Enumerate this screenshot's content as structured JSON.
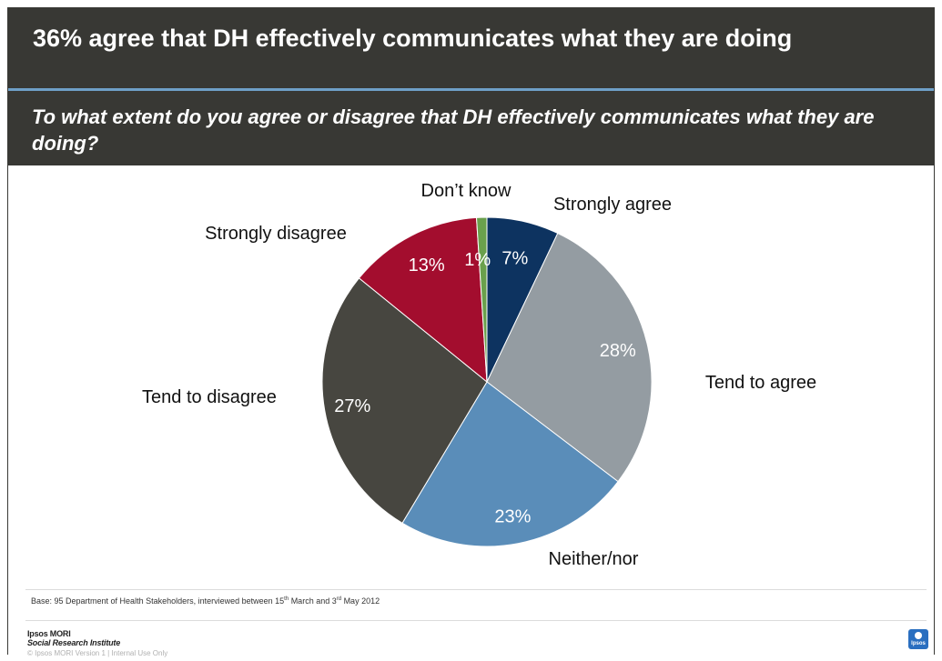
{
  "header": {
    "title": "36% agree that DH effectively communicates what they are doing",
    "question": "To what extent do you agree or disagree that DH effectively communicates what they are doing?"
  },
  "chart_data": {
    "type": "pie",
    "start_angle_deg": 0,
    "direction": "clockwise",
    "slices": [
      {
        "label": "Strongly agree",
        "value": 7,
        "value_label": "7%",
        "color": "#0d3360"
      },
      {
        "label": "Tend to agree",
        "value": 28,
        "value_label": "28%",
        "color": "#949ca2"
      },
      {
        "label": "Neither/nor",
        "value": 23,
        "value_label": "23%",
        "color": "#5a8db9"
      },
      {
        "label": "Tend to disagree",
        "value": 27,
        "value_label": "27%",
        "color": "#474640"
      },
      {
        "label": "Strongly disagree",
        "value": 13,
        "value_label": "13%",
        "color": "#a30d2e"
      },
      {
        "label": "Don’t know",
        "value": 1,
        "value_label": "1%",
        "color": "#6aa04c"
      }
    ]
  },
  "footer": {
    "base_note": "Base: 95 Department of Health Stakeholders, interviewed between 15th March and 3rd May 2012",
    "logo_line1": "Ipsos MORI",
    "logo_line2": "Social Research Institute",
    "copyright": "© Ipsos MORI     Version 1 | Internal Use Only",
    "brand": "Ipsos"
  }
}
